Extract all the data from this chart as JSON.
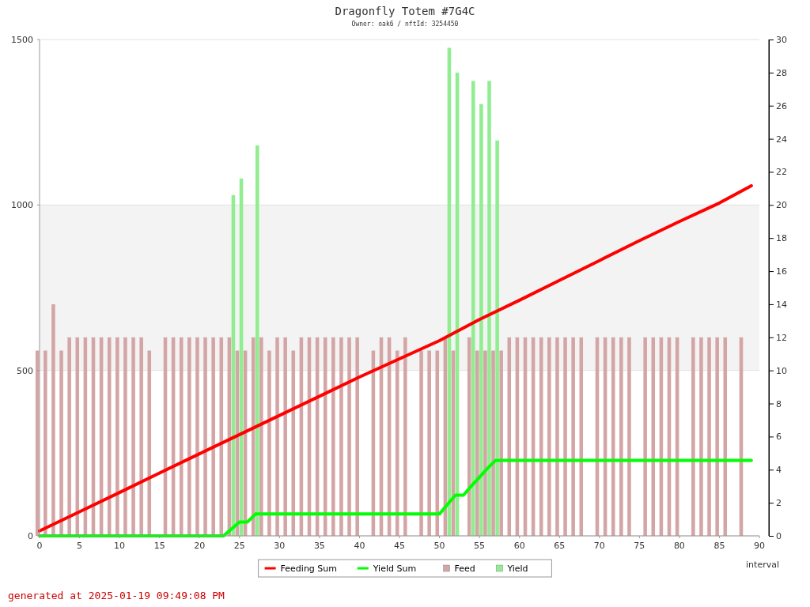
{
  "chart_data": {
    "type": "bar",
    "title": "Dragonfly Totem #7G4C",
    "subtitle": "Owner: oak6 / nftId: 3254450",
    "xlabel": "interval",
    "annotations": [
      "generated at 2025-01-19 09:49:08 PM"
    ],
    "x": [
      0,
      1,
      2,
      3,
      4,
      5,
      6,
      7,
      8,
      9,
      10,
      11,
      12,
      13,
      14,
      15,
      16,
      17,
      18,
      19,
      20,
      21,
      22,
      23,
      24,
      25,
      26,
      27,
      28,
      29,
      30,
      31,
      32,
      33,
      34,
      35,
      36,
      37,
      38,
      39,
      40,
      41,
      42,
      43,
      44,
      45,
      46,
      47,
      48,
      49,
      50,
      51,
      52,
      53,
      54,
      55,
      56,
      57,
      58,
      59,
      60,
      61,
      62,
      63,
      64,
      65,
      66,
      67,
      68,
      69,
      70,
      71,
      72,
      73,
      74,
      75,
      76,
      77,
      78,
      79,
      80,
      81,
      82,
      83,
      84,
      85,
      86,
      87,
      88
    ],
    "xlim": [
      0,
      90
    ],
    "xticks": [
      0,
      5,
      10,
      15,
      20,
      25,
      30,
      35,
      40,
      45,
      50,
      55,
      60,
      65,
      70,
      75,
      80,
      85,
      90
    ],
    "ylim": [
      0,
      1500
    ],
    "yticks": [
      0,
      500,
      1000,
      1500
    ],
    "y2lim": [
      0,
      30
    ],
    "y2ticks": [
      0,
      2,
      4,
      6,
      8,
      10,
      12,
      14,
      16,
      18,
      20,
      22,
      24,
      26,
      28,
      30
    ],
    "grid": "y",
    "legend": "bottom",
    "bands": [
      {
        "axis": "y",
        "from": 500,
        "to": 1000,
        "color": "#f3f3f3"
      }
    ],
    "series": [
      {
        "name": "Feeding Sum",
        "type": "line",
        "color": "#ff0000",
        "x": [
          0,
          5,
          10,
          15,
          20,
          25,
          30,
          35,
          40,
          45,
          50,
          55,
          60,
          65,
          70,
          75,
          80,
          85,
          89
        ],
        "values": [
          15,
          73,
          131,
          190,
          248,
          306,
          364,
          422,
          480,
          535,
          590,
          654,
          712,
          772,
          832,
          892,
          950,
          1006,
          1058
        ]
      },
      {
        "name": "Yield Sum",
        "type": "line",
        "color": "#00ff00",
        "x": [
          0,
          23,
          24,
          25,
          26,
          27,
          50,
          51,
          52,
          53,
          54,
          55,
          56,
          57,
          89
        ],
        "values": [
          0,
          0,
          21,
          42,
          42,
          66,
          66,
          95,
          123,
          123,
          151,
          177,
          204,
          228,
          228
        ]
      },
      {
        "name": "Feed",
        "axis": "y2",
        "color": "#d4a5a5",
        "values": [
          11.2,
          11.2,
          14,
          11.2,
          12,
          12,
          12,
          12,
          12,
          12,
          12,
          12,
          12,
          12,
          11.2,
          null,
          12,
          12,
          12,
          12,
          12,
          12,
          12,
          12,
          12,
          11.2,
          11.2,
          12,
          12,
          11.2,
          12,
          12,
          11.2,
          12,
          12,
          12,
          12,
          12,
          12,
          12,
          12,
          null,
          11.2,
          12,
          12,
          11.2,
          12,
          null,
          11.2,
          11.2,
          11.2,
          12,
          11.2,
          null,
          12,
          11.2,
          11.2,
          11.2,
          11.2,
          12,
          12,
          12,
          12,
          12,
          12,
          12,
          12,
          12,
          12,
          null,
          12,
          12,
          12,
          12,
          12,
          null,
          12,
          12,
          12,
          12,
          12,
          null,
          12,
          12,
          12,
          12,
          12,
          null,
          12
        ]
      },
      {
        "name": "Yield",
        "axis": "y2",
        "color": "#90ee90",
        "values": [
          null,
          null,
          null,
          null,
          null,
          null,
          null,
          null,
          null,
          null,
          null,
          null,
          null,
          null,
          null,
          null,
          null,
          null,
          null,
          null,
          null,
          null,
          null,
          null,
          20.6,
          21.6,
          null,
          23.6,
          null,
          null,
          null,
          null,
          null,
          null,
          null,
          null,
          null,
          null,
          null,
          null,
          null,
          null,
          null,
          null,
          null,
          null,
          null,
          null,
          null,
          null,
          null,
          29.5,
          28.0,
          null,
          27.5,
          26.1,
          27.5,
          23.9,
          null,
          null,
          null,
          null,
          null,
          null,
          null,
          null,
          null,
          null,
          null,
          null,
          null,
          null,
          null,
          null,
          null,
          null,
          null,
          null,
          null,
          null,
          null,
          null,
          null,
          null,
          null,
          null,
          null,
          null,
          null
        ]
      }
    ]
  }
}
